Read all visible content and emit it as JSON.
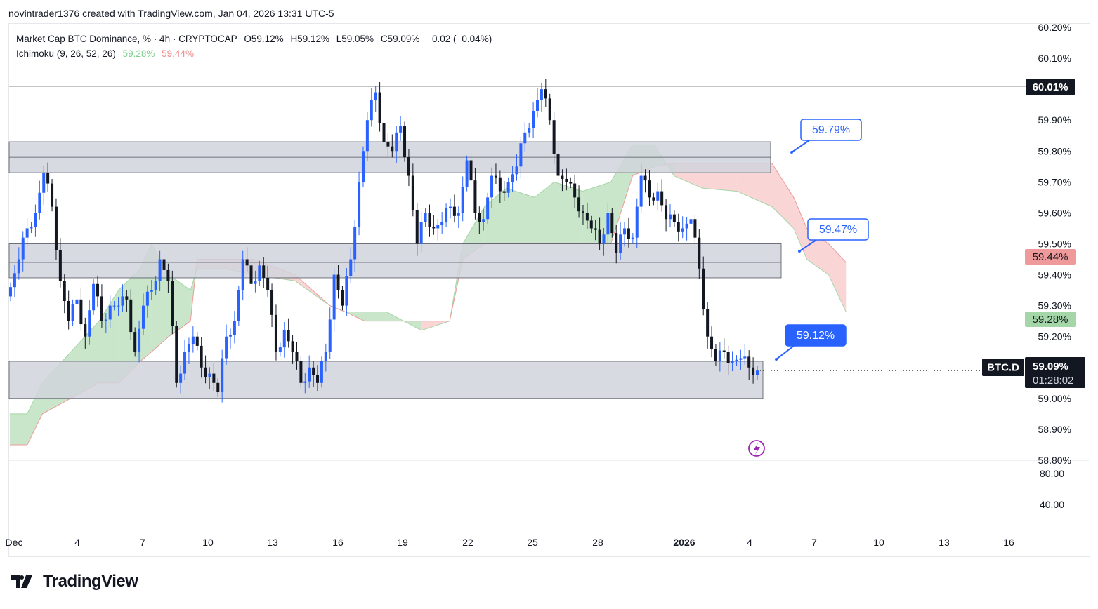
{
  "credit": "novintrader1376 created with TradingView.com, Jan 04, 2026 13:31 UTC-5",
  "legend": {
    "symbol": "Market Cap BTC Dominance, % · 4h · CRYPTOCAP",
    "open": "O59.12%",
    "high": "H59.12%",
    "low": "L59.05%",
    "close": "C59.09%",
    "change": "−0.02 (−0.04%)",
    "indicator": "Ichimoku (9, 26, 52, 26)",
    "ind_a": "59.28%",
    "ind_b": "59.44%"
  },
  "colors": {
    "up": "#2962ff",
    "down": "#131722",
    "cloud_up": "#a5d6a7",
    "cloud_down": "#f7b9b9",
    "zone": "#d1d4dc",
    "accent": "#2962ff",
    "ichi_a": "#a5d6a7",
    "ichi_b": "#ef9a9a",
    "event": "#9c27b0"
  },
  "logo": "TradingView",
  "badges": {
    "resistance": "60.01%",
    "span_b": "59.44%",
    "span_a": "59.28%",
    "symbol": "BTC.D",
    "last": "59.09%",
    "countdown": "01:28:02"
  },
  "callouts": [
    {
      "label": "59.79%",
      "price": 59.79,
      "filled": false
    },
    {
      "label": "59.47%",
      "price": 59.47,
      "filled": false
    },
    {
      "label": "59.12%",
      "price": 59.12,
      "filled": true
    }
  ],
  "lower_pane": {
    "ticks": [
      "80.00",
      "40.00"
    ]
  },
  "chart_data": {
    "type": "candlestick",
    "title": "Market Cap BTC Dominance, % · 4h · CRYPTOCAP",
    "ylim": [
      58.8,
      60.2
    ],
    "y_ticks": [
      "60.20%",
      "60.10%",
      "59.90%",
      "59.80%",
      "59.70%",
      "59.60%",
      "59.50%",
      "59.40%",
      "59.30%",
      "59.20%",
      "59.00%",
      "58.90%",
      "58.80%"
    ],
    "x_ticks": [
      "Dec",
      "4",
      "7",
      "10",
      "13",
      "16",
      "19",
      "22",
      "25",
      "28",
      "2026",
      "4",
      "7",
      "10",
      "13",
      "16"
    ],
    "closes": [
      59.36,
      59.45,
      59.55,
      59.6,
      59.73,
      59.62,
      59.38,
      59.25,
      59.32,
      59.2,
      59.37,
      59.25,
      59.3,
      59.3,
      59.32,
      59.15,
      59.3,
      59.35,
      59.45,
      59.38,
      59.05,
      59.15,
      59.2,
      59.1,
      59.08,
      59.02,
      59.2,
      59.25,
      59.45,
      59.37,
      59.43,
      59.35,
      59.15,
      59.22,
      59.15,
      59.05,
      59.1,
      59.05,
      59.15,
      59.4,
      59.3,
      59.45,
      59.7,
      59.9,
      59.99,
      59.83,
      59.8,
      59.88,
      59.72,
      59.5,
      59.6,
      59.55,
      59.57,
      59.62,
      59.6,
      59.77,
      59.6,
      59.58,
      59.72,
      59.67,
      59.7,
      59.75,
      59.86,
      59.93,
      60.0,
      59.9,
      59.72,
      59.7,
      59.65,
      59.6,
      59.55,
      59.5,
      59.6,
      59.47,
      59.55,
      59.52,
      59.72,
      59.65,
      59.67,
      59.58,
      59.57,
      59.55,
      59.58,
      59.42,
      59.2,
      59.12,
      59.15,
      59.12,
      59.13,
      59.1,
      59.09
    ],
    "ichimoku": {
      "day": [
        -0.1,
        0.7,
        1.4,
        2.7,
        4,
        4.9,
        5.9,
        6.4,
        7.2,
        8.2,
        8.5,
        9.8,
        11.1,
        13,
        14.6,
        15.3,
        16.2,
        17.2,
        18.8,
        20.1,
        20.7,
        21.7,
        22.7,
        24,
        24.9,
        26.2,
        27.5,
        28.5,
        29.5,
        30.4,
        31.7,
        33.3,
        34.9,
        35.9,
        36.5,
        37.5,
        38.3
      ],
      "span_a": [
        58.95,
        58.95,
        59.05,
        59.15,
        59.25,
        59.35,
        59.42,
        59.5,
        59.4,
        59.35,
        59.42,
        59.42,
        59.4,
        59.38,
        59.3,
        59.28,
        59.28,
        59.28,
        59.22,
        59.25,
        59.5,
        59.62,
        59.68,
        59.65,
        59.7,
        59.67,
        59.7,
        59.82,
        59.82,
        59.72,
        59.68,
        59.67,
        59.62,
        59.55,
        59.45,
        59.4,
        59.28
      ],
      "span_b": [
        58.85,
        58.85,
        58.95,
        59.0,
        59.05,
        59.05,
        59.12,
        59.15,
        59.2,
        59.25,
        59.45,
        59.45,
        59.45,
        59.4,
        59.3,
        59.28,
        59.25,
        59.25,
        59.25,
        59.25,
        59.45,
        59.5,
        59.5,
        59.5,
        59.5,
        59.5,
        59.5,
        59.72,
        59.75,
        59.76,
        59.76,
        59.76,
        59.76,
        59.65,
        59.55,
        59.5,
        59.44
      ]
    },
    "zones": [
      {
        "top": 59.83,
        "bottom": 59.73,
        "mid": 59.78
      },
      {
        "top": 59.5,
        "bottom": 59.39,
        "mid": 59.44
      },
      {
        "top": 59.12,
        "bottom": 59.0,
        "mid": 59.06
      }
    ],
    "resistance": 60.01,
    "last": 59.09
  }
}
